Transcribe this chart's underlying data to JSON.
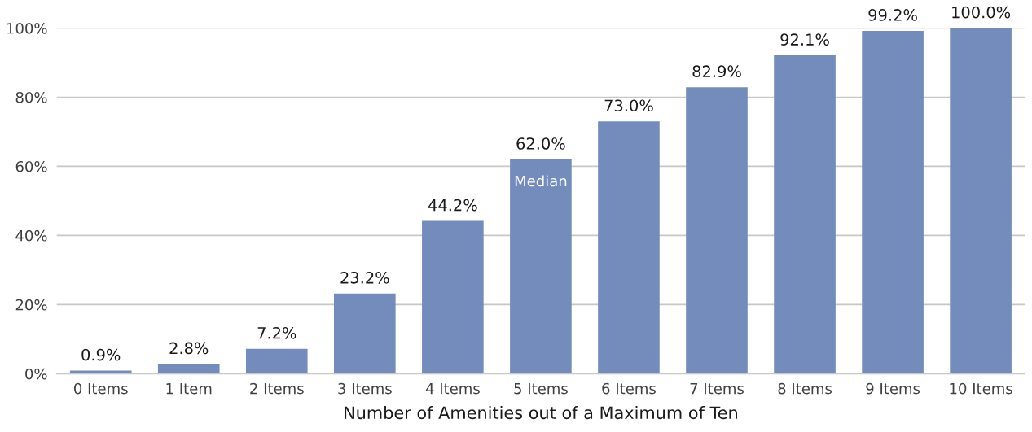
{
  "chart_data": {
    "type": "bar",
    "xlabel": "Number of Amenities out of a Maximum of Ten",
    "categories": [
      "0 Items",
      "1 Item",
      "2 Items",
      "3 Items",
      "4 Items",
      "5 Items",
      "6 Items",
      "7 Items",
      "8 Items",
      "9 Items",
      "10 Items"
    ],
    "values": [
      0.9,
      2.8,
      7.2,
      23.2,
      44.2,
      62.0,
      73.0,
      82.9,
      92.1,
      99.2,
      100.0
    ],
    "value_labels": [
      "0.9%",
      "2.8%",
      "7.2%",
      "23.2%",
      "44.2%",
      "62.0%",
      "73.0%",
      "82.9%",
      "92.1%",
      "99.2%",
      "100.0%"
    ],
    "color": "#748cbc",
    "ylim": [
      0,
      100
    ],
    "yticks": [
      {
        "value": 0,
        "label": "0%"
      },
      {
        "value": 20,
        "label": "20%"
      },
      {
        "value": 40,
        "label": "40%"
      },
      {
        "value": 60,
        "label": "60%"
      },
      {
        "value": 80,
        "label": "80%"
      },
      {
        "value": 100,
        "label": "100%"
      }
    ],
    "grid": "y",
    "legend": false,
    "annotations": [
      "Median"
    ]
  }
}
